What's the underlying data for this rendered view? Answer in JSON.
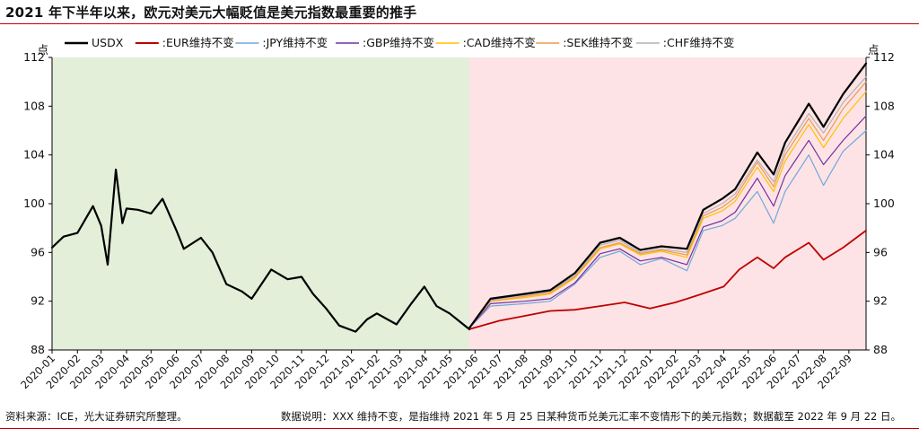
{
  "title": "2021 年下半年以来，欧元对美元大幅贬值是美元指数最重要的推手",
  "footer": {
    "source": "资料来源：ICE，光大证券研究所整理。",
    "note": "数据说明：XXX 维持不变，是指维持 2021 年 5 月 25 日某种货币兑美元汇率不变情形下的美元指数；数据截至 2022 年 9 月 22 日。"
  },
  "chart_data": {
    "type": "line",
    "y_unit_left": "点",
    "y_unit_right": "点",
    "ylim": [
      88,
      112
    ],
    "yticks": [
      88,
      92,
      96,
      100,
      104,
      108,
      112
    ],
    "x_start": "2020-01-01",
    "x_end": "2022-09-22",
    "split_date": "2021-05-25",
    "xticks": [
      "2020-01",
      "2020-02",
      "2020-03",
      "2020-04",
      "2020-05",
      "2020-06",
      "2020-07",
      "2020-08",
      "2020-09",
      "2020-10",
      "2020-11",
      "2020-12",
      "2021-01",
      "2021-02",
      "2021-03",
      "2021-04",
      "2021-05",
      "2021-06",
      "2021-07",
      "2021-08",
      "2021-09",
      "2021-10",
      "2021-11",
      "2021-12",
      "2022-01",
      "2022-02",
      "2022-03",
      "2022-04",
      "2022-05",
      "2022-06",
      "2022-07",
      "2022-08",
      "2022-09"
    ],
    "region_colors": {
      "before": "#e3efd9",
      "after": "#fde3e5"
    },
    "series": [
      {
        "name": "USDX",
        "color": "#000000",
        "width": 2.2,
        "points": [
          [
            "2020-01-01",
            96.4
          ],
          [
            "2020-01-15",
            97.3
          ],
          [
            "2020-02-01",
            97.6
          ],
          [
            "2020-02-20",
            99.8
          ],
          [
            "2020-03-01",
            98.2
          ],
          [
            "2020-03-09",
            95.0
          ],
          [
            "2020-03-19",
            102.8
          ],
          [
            "2020-03-27",
            98.4
          ],
          [
            "2020-04-01",
            99.6
          ],
          [
            "2020-04-15",
            99.5
          ],
          [
            "2020-05-01",
            99.2
          ],
          [
            "2020-05-15",
            100.4
          ],
          [
            "2020-06-01",
            97.8
          ],
          [
            "2020-06-10",
            96.3
          ],
          [
            "2020-07-01",
            97.2
          ],
          [
            "2020-07-15",
            96.0
          ],
          [
            "2020-08-01",
            93.4
          ],
          [
            "2020-08-20",
            92.8
          ],
          [
            "2020-09-01",
            92.2
          ],
          [
            "2020-09-25",
            94.6
          ],
          [
            "2020-10-15",
            93.8
          ],
          [
            "2020-11-01",
            94.0
          ],
          [
            "2020-11-15",
            92.6
          ],
          [
            "2020-12-01",
            91.4
          ],
          [
            "2020-12-17",
            90.0
          ],
          [
            "2021-01-06",
            89.5
          ],
          [
            "2021-01-20",
            90.5
          ],
          [
            "2021-02-01",
            91.0
          ],
          [
            "2021-02-25",
            90.1
          ],
          [
            "2021-03-15",
            91.8
          ],
          [
            "2021-03-31",
            93.2
          ],
          [
            "2021-04-15",
            91.6
          ],
          [
            "2021-05-01",
            91.0
          ],
          [
            "2021-05-25",
            89.7
          ]
        ]
      },
      {
        "name": ":EUR维持不变",
        "color": "#c00000",
        "width": 1.8,
        "points": [
          [
            "2021-05-25",
            89.7
          ],
          [
            "2021-07-01",
            90.4
          ],
          [
            "2021-08-01",
            90.8
          ],
          [
            "2021-09-01",
            91.2
          ],
          [
            "2021-10-01",
            91.3
          ],
          [
            "2021-11-01",
            91.6
          ],
          [
            "2021-12-01",
            91.9
          ],
          [
            "2022-01-01",
            91.4
          ],
          [
            "2022-02-01",
            91.9
          ],
          [
            "2022-03-01",
            92.5
          ],
          [
            "2022-04-01",
            93.2
          ],
          [
            "2022-04-20",
            94.6
          ],
          [
            "2022-05-12",
            95.6
          ],
          [
            "2022-06-01",
            94.7
          ],
          [
            "2022-06-15",
            95.6
          ],
          [
            "2022-07-14",
            96.8
          ],
          [
            "2022-08-01",
            95.4
          ],
          [
            "2022-08-25",
            96.4
          ],
          [
            "2022-09-22",
            97.8
          ]
        ]
      },
      {
        "name": ":JPY维持不变",
        "color": "#6fa8dc",
        "width": 1.2,
        "points": [
          [
            "2021-05-25",
            89.8
          ],
          [
            "2021-06-20",
            91.6
          ],
          [
            "2021-08-01",
            91.8
          ],
          [
            "2021-09-01",
            92.0
          ],
          [
            "2021-10-01",
            93.4
          ],
          [
            "2021-11-01",
            95.6
          ],
          [
            "2021-11-25",
            96.1
          ],
          [
            "2021-12-20",
            95.0
          ],
          [
            "2022-01-15",
            95.5
          ],
          [
            "2022-02-15",
            94.5
          ],
          [
            "2022-03-07",
            97.8
          ],
          [
            "2022-03-30",
            98.2
          ],
          [
            "2022-04-15",
            98.8
          ],
          [
            "2022-05-12",
            101.0
          ],
          [
            "2022-06-01",
            98.4
          ],
          [
            "2022-06-15",
            101.0
          ],
          [
            "2022-07-14",
            104.0
          ],
          [
            "2022-08-01",
            101.5
          ],
          [
            "2022-08-25",
            104.3
          ],
          [
            "2022-09-22",
            106.0
          ]
        ]
      },
      {
        "name": ":GBP维持不变",
        "color": "#7030a0",
        "width": 1.2,
        "points": [
          [
            "2021-05-25",
            89.8
          ],
          [
            "2021-06-20",
            91.8
          ],
          [
            "2021-08-01",
            92.0
          ],
          [
            "2021-09-01",
            92.2
          ],
          [
            "2021-10-01",
            93.5
          ],
          [
            "2021-11-01",
            95.9
          ],
          [
            "2021-11-25",
            96.3
          ],
          [
            "2021-12-20",
            95.3
          ],
          [
            "2022-01-15",
            95.6
          ],
          [
            "2022-02-15",
            95.0
          ],
          [
            "2022-03-07",
            98.1
          ],
          [
            "2022-03-30",
            98.6
          ],
          [
            "2022-04-15",
            99.3
          ],
          [
            "2022-05-12",
            102.1
          ],
          [
            "2022-06-01",
            99.8
          ],
          [
            "2022-06-15",
            102.3
          ],
          [
            "2022-07-14",
            105.2
          ],
          [
            "2022-08-01",
            103.2
          ],
          [
            "2022-08-25",
            105.2
          ],
          [
            "2022-09-22",
            107.2
          ]
        ]
      },
      {
        "name": ":CAD维持不变",
        "color": "#ffc000",
        "width": 1.2,
        "points": [
          [
            "2021-05-25",
            89.8
          ],
          [
            "2021-06-20",
            92.0
          ],
          [
            "2021-08-01",
            92.3
          ],
          [
            "2021-09-01",
            92.6
          ],
          [
            "2021-10-01",
            93.9
          ],
          [
            "2021-11-01",
            96.3
          ],
          [
            "2021-11-25",
            96.7
          ],
          [
            "2021-12-20",
            95.8
          ],
          [
            "2022-01-15",
            96.1
          ],
          [
            "2022-02-15",
            95.6
          ],
          [
            "2022-03-07",
            98.8
          ],
          [
            "2022-03-30",
            99.4
          ],
          [
            "2022-04-15",
            100.2
          ],
          [
            "2022-05-12",
            103.0
          ],
          [
            "2022-06-01",
            101.0
          ],
          [
            "2022-06-15",
            103.5
          ],
          [
            "2022-07-14",
            106.5
          ],
          [
            "2022-08-01",
            104.6
          ],
          [
            "2022-08-25",
            107.0
          ],
          [
            "2022-09-22",
            109.2
          ]
        ]
      },
      {
        "name": ":SEK维持不变",
        "color": "#ed9b4a",
        "width": 1.2,
        "points": [
          [
            "2021-05-25",
            89.8
          ],
          [
            "2021-06-20",
            92.0
          ],
          [
            "2021-08-01",
            92.4
          ],
          [
            "2021-09-01",
            92.7
          ],
          [
            "2021-10-01",
            94.0
          ],
          [
            "2021-11-01",
            96.4
          ],
          [
            "2021-11-25",
            96.8
          ],
          [
            "2021-12-20",
            95.9
          ],
          [
            "2022-01-15",
            96.2
          ],
          [
            "2022-02-15",
            95.8
          ],
          [
            "2022-03-07",
            99.0
          ],
          [
            "2022-03-30",
            99.7
          ],
          [
            "2022-04-15",
            100.5
          ],
          [
            "2022-05-12",
            103.4
          ],
          [
            "2022-06-01",
            101.4
          ],
          [
            "2022-06-15",
            104.0
          ],
          [
            "2022-07-14",
            107.0
          ],
          [
            "2022-08-01",
            105.2
          ],
          [
            "2022-08-25",
            107.8
          ],
          [
            "2022-09-22",
            110.0
          ]
        ]
      },
      {
        "name": ":CHF维持不变",
        "color": "#b4b4b4",
        "width": 1.2,
        "points": [
          [
            "2021-05-25",
            89.8
          ],
          [
            "2021-06-20",
            92.1
          ],
          [
            "2021-08-01",
            92.5
          ],
          [
            "2021-09-01",
            92.8
          ],
          [
            "2021-10-01",
            94.1
          ],
          [
            "2021-11-01",
            96.6
          ],
          [
            "2021-11-25",
            97.0
          ],
          [
            "2021-12-20",
            96.0
          ],
          [
            "2022-01-15",
            96.3
          ],
          [
            "2022-02-15",
            96.0
          ],
          [
            "2022-03-07",
            99.2
          ],
          [
            "2022-03-30",
            100.0
          ],
          [
            "2022-04-15",
            100.8
          ],
          [
            "2022-05-12",
            103.6
          ],
          [
            "2022-06-01",
            101.8
          ],
          [
            "2022-06-15",
            104.4
          ],
          [
            "2022-07-14",
            107.4
          ],
          [
            "2022-08-01",
            105.8
          ],
          [
            "2022-08-25",
            108.3
          ],
          [
            "2022-09-22",
            110.4
          ]
        ]
      },
      {
        "name": "",
        "color": "#000000",
        "width": 2.2,
        "continuation_of": "USDX",
        "points": [
          [
            "2021-05-25",
            89.8
          ],
          [
            "2021-06-20",
            92.2
          ],
          [
            "2021-08-01",
            92.6
          ],
          [
            "2021-09-01",
            92.9
          ],
          [
            "2021-10-01",
            94.3
          ],
          [
            "2021-11-01",
            96.8
          ],
          [
            "2021-11-25",
            97.2
          ],
          [
            "2021-12-20",
            96.2
          ],
          [
            "2022-01-15",
            96.5
          ],
          [
            "2022-02-15",
            96.3
          ],
          [
            "2022-03-07",
            99.5
          ],
          [
            "2022-03-30",
            100.4
          ],
          [
            "2022-04-15",
            101.2
          ],
          [
            "2022-05-12",
            104.2
          ],
          [
            "2022-06-01",
            102.4
          ],
          [
            "2022-06-15",
            105.0
          ],
          [
            "2022-07-14",
            108.2
          ],
          [
            "2022-08-01",
            106.3
          ],
          [
            "2022-08-25",
            109.0
          ],
          [
            "2022-09-22",
            111.5
          ]
        ]
      }
    ],
    "legend_placement": "top",
    "grid": false
  }
}
